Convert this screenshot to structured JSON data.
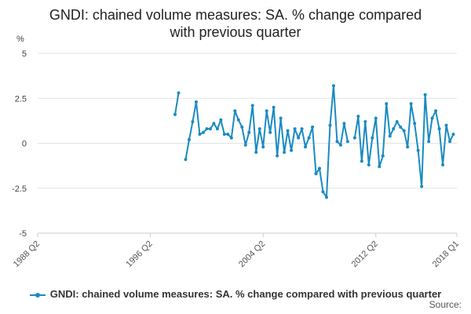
{
  "title_lines": [
    "GNDI: chained volume measures: SA. % change compared",
    "with previous quarter"
  ],
  "source_label": "Source:",
  "chart_data": {
    "type": "line",
    "title": "GNDI: chained volume measures: SA. % change compared with previous quarter",
    "ylabel": "%",
    "xlabel": "",
    "ylim": [
      -5,
      5
    ],
    "y_ticks": [
      {
        "value": 5,
        "label": "5"
      },
      {
        "value": 2.5,
        "label": "2.5"
      },
      {
        "value": 0,
        "label": "0"
      },
      {
        "value": -2.5,
        "label": "-2.5"
      },
      {
        "value": -5,
        "label": "-5"
      }
    ],
    "x_range": [
      "1988 Q2",
      "2018 Q1"
    ],
    "x_ticks": [
      "1988 Q2",
      "1996 Q2",
      "2004 Q2",
      "2012 Q2",
      "2018 Q1"
    ],
    "grid": "horizontal",
    "legend_position": "bottom",
    "color": "#1a8bc1",
    "series": [
      {
        "name": "GNDI: chained volume measures: SA. % change compared with previous quarter",
        "segments": [
          [
            {
              "x": "1998 Q1",
              "y": 1.6
            },
            {
              "x": "1998 Q2",
              "y": 2.8
            }
          ],
          [
            {
              "x": "1998 Q4",
              "y": -0.9
            },
            {
              "x": "1999 Q1",
              "y": 0.2
            },
            {
              "x": "1999 Q2",
              "y": 1.2
            },
            {
              "x": "1999 Q3",
              "y": 2.3
            },
            {
              "x": "1999 Q4",
              "y": 0.5
            },
            {
              "x": "2000 Q1",
              "y": 0.6
            },
            {
              "x": "2000 Q2",
              "y": 0.8
            },
            {
              "x": "2000 Q3",
              "y": 0.8
            },
            {
              "x": "2000 Q4",
              "y": 1.1
            },
            {
              "x": "2001 Q1",
              "y": 0.8
            },
            {
              "x": "2001 Q2",
              "y": 1.3
            },
            {
              "x": "2001 Q3",
              "y": 0.5
            },
            {
              "x": "2001 Q4",
              "y": 0.5
            },
            {
              "x": "2002 Q1",
              "y": 0.3
            },
            {
              "x": "2002 Q2",
              "y": 1.8
            },
            {
              "x": "2002 Q3",
              "y": 1.3
            },
            {
              "x": "2002 Q4",
              "y": 0.9
            },
            {
              "x": "2003 Q1",
              "y": -0.1
            },
            {
              "x": "2003 Q2",
              "y": 0.6
            },
            {
              "x": "2003 Q3",
              "y": 2.1
            },
            {
              "x": "2003 Q4",
              "y": -0.5
            },
            {
              "x": "2004 Q1",
              "y": 0.8
            },
            {
              "x": "2004 Q2",
              "y": -0.2
            },
            {
              "x": "2004 Q3",
              "y": 1.8
            },
            {
              "x": "2004 Q4",
              "y": 0.6
            },
            {
              "x": "2005 Q1",
              "y": 2.0
            },
            {
              "x": "2005 Q2",
              "y": -0.7
            },
            {
              "x": "2005 Q3",
              "y": 1.4
            },
            {
              "x": "2005 Q4",
              "y": -0.5
            },
            {
              "x": "2006 Q1",
              "y": 0.7
            },
            {
              "x": "2006 Q2",
              "y": -0.4
            },
            {
              "x": "2006 Q3",
              "y": 0.8
            },
            {
              "x": "2006 Q4",
              "y": 0.3
            },
            {
              "x": "2007 Q1",
              "y": 0.8
            },
            {
              "x": "2007 Q2",
              "y": -0.2
            },
            {
              "x": "2007 Q3",
              "y": 0.3
            },
            {
              "x": "2007 Q4",
              "y": 0.9
            },
            {
              "x": "2008 Q1",
              "y": -1.7
            },
            {
              "x": "2008 Q2",
              "y": -1.4
            },
            {
              "x": "2008 Q3",
              "y": -2.7
            },
            {
              "x": "2008 Q4",
              "y": -3.0
            },
            {
              "x": "2009 Q1",
              "y": 1.0
            },
            {
              "x": "2009 Q2",
              "y": 3.2
            },
            {
              "x": "2009 Q3",
              "y": 0.1
            },
            {
              "x": "2009 Q4",
              "y": -0.1
            },
            {
              "x": "2010 Q1",
              "y": 1.1
            },
            {
              "x": "2010 Q2",
              "y": 0.1
            }
          ],
          [
            {
              "x": "2010 Q4",
              "y": 0.3
            },
            {
              "x": "2011 Q1",
              "y": 1.5
            },
            {
              "x": "2011 Q2",
              "y": -1.0
            },
            {
              "x": "2011 Q3",
              "y": 1.2
            },
            {
              "x": "2011 Q4",
              "y": -1.2
            },
            {
              "x": "2012 Q1",
              "y": 0.3
            },
            {
              "x": "2012 Q2",
              "y": 1.4
            },
            {
              "x": "2012 Q3",
              "y": -1.3
            },
            {
              "x": "2012 Q4",
              "y": -0.7
            },
            {
              "x": "2013 Q1",
              "y": 2.2
            },
            {
              "x": "2013 Q2",
              "y": 0.4
            },
            {
              "x": "2013 Q3",
              "y": 0.8
            },
            {
              "x": "2013 Q4",
              "y": 1.2
            },
            {
              "x": "2014 Q1",
              "y": 0.9
            },
            {
              "x": "2014 Q2",
              "y": 0.7
            },
            {
              "x": "2014 Q3",
              "y": -0.2
            },
            {
              "x": "2014 Q4",
              "y": 2.2
            },
            {
              "x": "2015 Q1",
              "y": 1.1
            },
            {
              "x": "2015 Q2",
              "y": -0.4
            },
            {
              "x": "2015 Q3",
              "y": -2.4
            },
            {
              "x": "2015 Q4",
              "y": 2.7
            },
            {
              "x": "2016 Q1",
              "y": 0.1
            },
            {
              "x": "2016 Q2",
              "y": 1.4
            },
            {
              "x": "2016 Q3",
              "y": 1.8
            },
            {
              "x": "2016 Q4",
              "y": 0.8
            },
            {
              "x": "2017 Q1",
              "y": -1.2
            },
            {
              "x": "2017 Q2",
              "y": 1.0
            },
            {
              "x": "2017 Q3",
              "y": 0.1
            },
            {
              "x": "2017 Q4",
              "y": 0.5
            }
          ]
        ]
      }
    ]
  }
}
